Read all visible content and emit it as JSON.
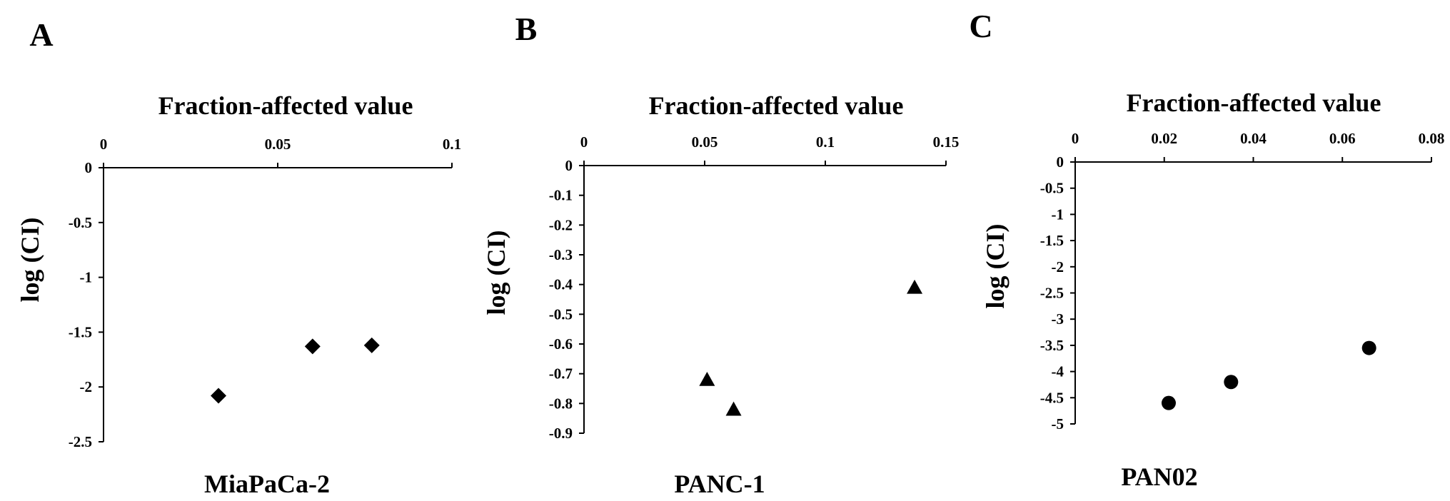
{
  "chart_data": [
    {
      "panel": "A",
      "type": "scatter",
      "xlabel": "Fraction-affected value",
      "ylabel": "log (CI)",
      "series_label": "MiaPaCa-2",
      "marker": "diamond",
      "xlim": [
        0,
        0.1
      ],
      "ylim": [
        -2.5,
        0
      ],
      "xticks": [
        0,
        0.05,
        0.1
      ],
      "xtick_labels": [
        "0",
        "0.05",
        "0.1"
      ],
      "yticks": [
        0,
        -0.5,
        -1,
        -1.5,
        -2,
        -2.5
      ],
      "ytick_labels": [
        "0",
        "-0.5",
        "-1",
        "-1.5",
        "-2",
        "-2.5"
      ],
      "points": [
        {
          "x": 0.033,
          "y": -2.08
        },
        {
          "x": 0.06,
          "y": -1.63
        },
        {
          "x": 0.077,
          "y": -1.62
        }
      ]
    },
    {
      "panel": "B",
      "type": "scatter",
      "xlabel": "Fraction-affected value",
      "ylabel": "log (CI)",
      "series_label": "PANC-1",
      "marker": "triangle",
      "xlim": [
        0,
        0.15
      ],
      "ylim": [
        -0.9,
        0
      ],
      "xticks": [
        0,
        0.05,
        0.1,
        0.15
      ],
      "xtick_labels": [
        "0",
        "0.05",
        "0.1",
        "0.15"
      ],
      "yticks": [
        0,
        -0.1,
        -0.2,
        -0.3,
        -0.4,
        -0.5,
        -0.6,
        -0.7,
        -0.8,
        -0.9
      ],
      "ytick_labels": [
        "0",
        "-0.1",
        "-0.2",
        "-0.3",
        "-0.4",
        "-0.5",
        "-0.6",
        "-0.7",
        "-0.8",
        "-0.9"
      ],
      "points": [
        {
          "x": 0.051,
          "y": -0.72
        },
        {
          "x": 0.062,
          "y": -0.82
        },
        {
          "x": 0.137,
          "y": -0.41
        }
      ]
    },
    {
      "panel": "C",
      "type": "scatter",
      "xlabel": "Fraction-affected value",
      "ylabel": "log (CI)",
      "series_label": "PAN02",
      "marker": "circle",
      "xlim": [
        0,
        0.08
      ],
      "ylim": [
        -5,
        0
      ],
      "xticks": [
        0,
        0.02,
        0.04,
        0.06,
        0.08
      ],
      "xtick_labels": [
        "0",
        "0.02",
        "0.04",
        "0.06",
        "0.08"
      ],
      "yticks": [
        0,
        -0.5,
        -1,
        -1.5,
        -2,
        -2.5,
        -3,
        -3.5,
        -4,
        -4.5,
        -5
      ],
      "ytick_labels": [
        "0",
        "-0.5",
        "-1",
        "-1.5",
        "-2",
        "-2.5",
        "-3",
        "-3.5",
        "-4",
        "-4.5",
        "-5"
      ],
      "points": [
        {
          "x": 0.021,
          "y": -4.6
        },
        {
          "x": 0.035,
          "y": -4.2
        },
        {
          "x": 0.066,
          "y": -3.55
        }
      ]
    }
  ]
}
